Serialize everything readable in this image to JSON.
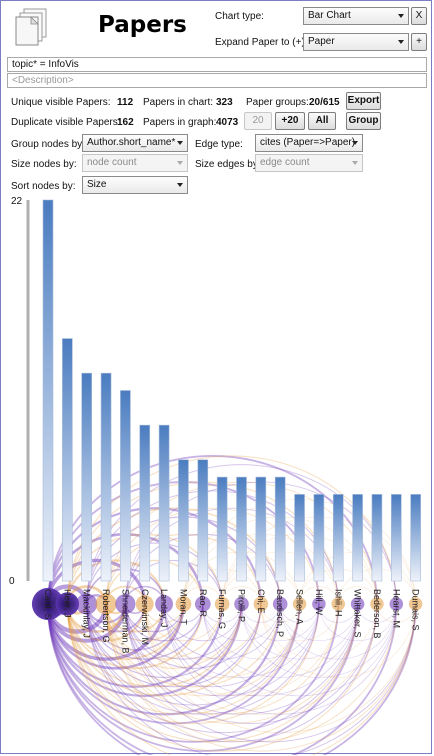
{
  "header": {
    "title": "Papers",
    "chart_type_label": "Chart type:",
    "chart_type_value": "Bar Chart",
    "close_label": "X",
    "expand_label": "Expand Paper to (+):",
    "expand_value": "Paper",
    "expand_button_label": "+"
  },
  "query": {
    "text": "topic* = InfoVis",
    "description_placeholder": "<Description>"
  },
  "stats": {
    "unique_visible_label": "Unique visible Papers:",
    "unique_visible_value": "112",
    "in_chart_label": "Papers in chart:",
    "in_chart_value": "323",
    "groups_label": "Paper groups:",
    "groups_value": "20/615",
    "export_label": "Export",
    "duplicate_label": "Duplicate visible Papers:",
    "duplicate_value": "162",
    "in_graph_label": "Papers in graph:",
    "in_graph_value": "4073",
    "btn_20": "20",
    "btn_plus20": "+20",
    "btn_all": "All",
    "btn_group": "Group"
  },
  "controls": {
    "group_nodes_label": "Group nodes by:",
    "group_nodes_value": "Author.short_name*",
    "edge_type_label": "Edge type:",
    "edge_type_value": "cites (Paper=>Paper)",
    "size_nodes_label": "Size nodes by:",
    "size_nodes_value": "node count",
    "size_edges_label": "Size edges by:",
    "size_edges_value": "edge count",
    "sort_nodes_label": "Sort nodes by:",
    "sort_nodes_value": "Size"
  },
  "chart_data": {
    "type": "bar",
    "ylim": [
      0,
      22
    ],
    "ytick_labels": [
      "22",
      "0"
    ],
    "categories": [
      "Card, S",
      "Heer, J",
      "Mackinlay, J",
      "Robertson, G",
      "Shneiderman, B",
      "Czerwinski, M",
      "Landay, J",
      "Moran, T",
      "Rao, R",
      "Furnas, G",
      "Pirolli, P",
      "Chi, E",
      "Baudisch, P",
      "Sellen, A",
      "Hill, W",
      "Ishii, H",
      "Whittaker, S",
      "Bederson, B",
      "Hearst, M",
      "Dumais, S"
    ],
    "values": [
      22,
      14,
      12,
      12,
      11,
      9,
      9,
      7,
      7,
      6,
      6,
      6,
      6,
      5,
      5,
      5,
      5,
      5,
      5,
      5
    ],
    "colors": {
      "bar_top": "#4a7cc0",
      "bar_bottom": "#eef2fa",
      "edge_purple": "#6a35b8",
      "edge_orange": "#e39a3e",
      "node_dark": "#2a0f6e"
    }
  }
}
